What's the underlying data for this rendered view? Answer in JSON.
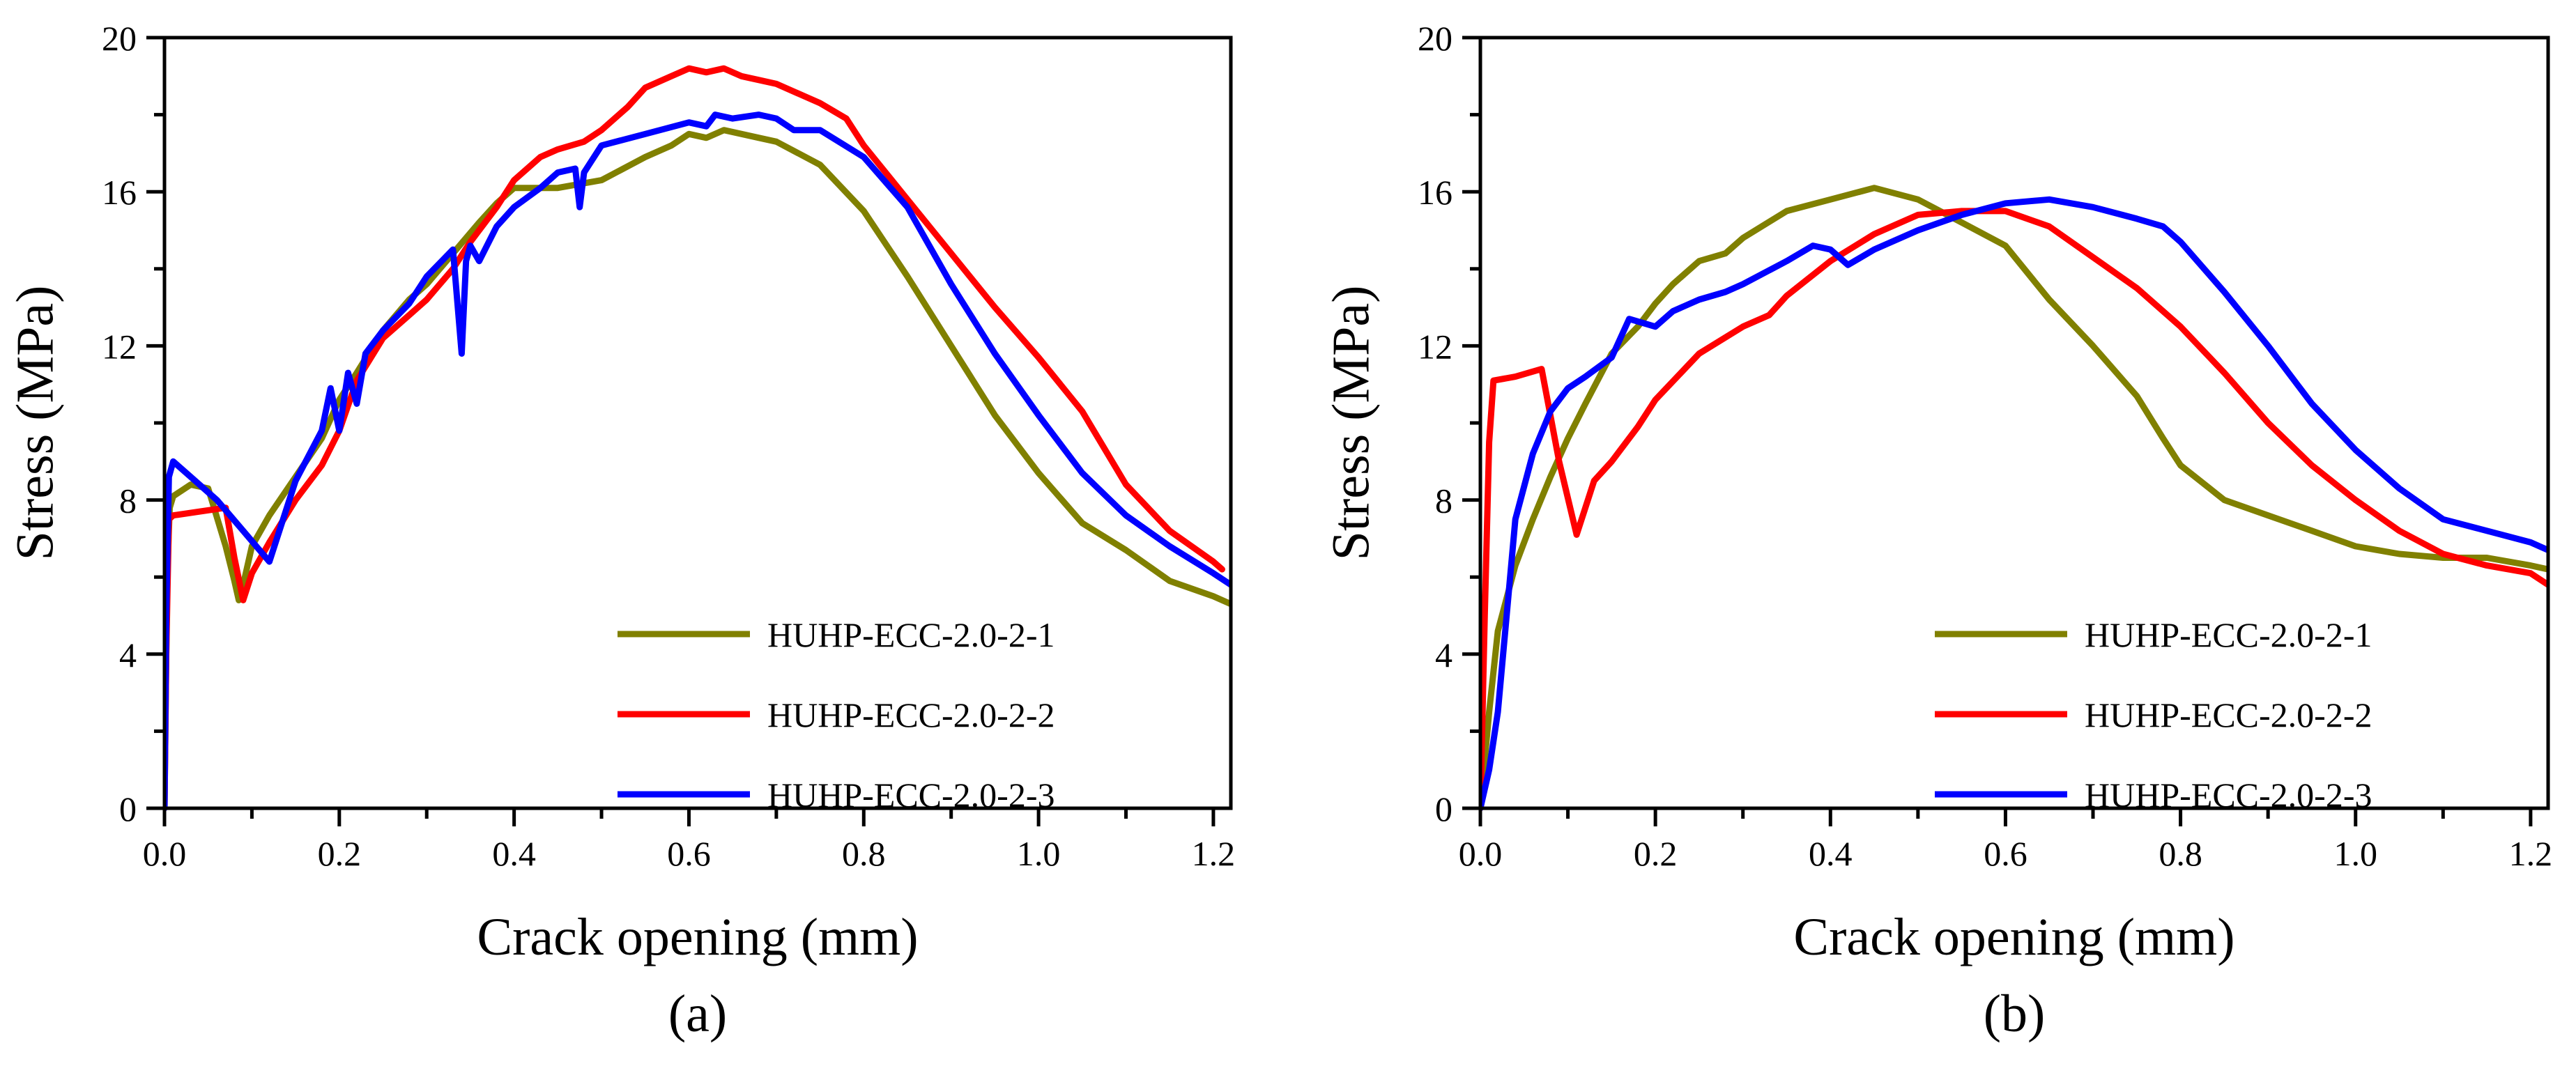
{
  "chart_data": [
    {
      "type": "line",
      "caption": "(a)",
      "xlabel": "Crack opening (mm)",
      "ylabel": "Stress (MPa)",
      "xlim": [
        0.0,
        1.22
      ],
      "ylim": [
        0,
        20
      ],
      "xticks": [
        0.0,
        0.2,
        0.4,
        0.6,
        0.8,
        1.0,
        1.2
      ],
      "yticks": [
        0,
        4,
        8,
        12,
        16,
        20
      ],
      "xtick_labels": [
        "0.0",
        "0.2",
        "0.4",
        "0.6",
        "0.8",
        "1.0",
        "1.2"
      ],
      "ytick_labels": [
        "0",
        "4",
        "8",
        "12",
        "16",
        "20"
      ],
      "grid": false,
      "legend_position": "bottom-right",
      "series": [
        {
          "name": "HUHP-ECC-2.0-2-1",
          "color": "#808000",
          "x": [
            0,
            0.003,
            0.006,
            0.01,
            0.03,
            0.05,
            0.07,
            0.08,
            0.085,
            0.09,
            0.1,
            0.12,
            0.15,
            0.18,
            0.2,
            0.22,
            0.25,
            0.28,
            0.3,
            0.33,
            0.36,
            0.38,
            0.4,
            0.45,
            0.5,
            0.55,
            0.58,
            0.6,
            0.62,
            0.64,
            0.68,
            0.7,
            0.75,
            0.8,
            0.85,
            0.9,
            0.95,
            1.0,
            1.05,
            1.1,
            1.15,
            1.2,
            1.22
          ],
          "y": [
            0,
            6.0,
            7.8,
            8.1,
            8.4,
            8.3,
            6.8,
            5.9,
            5.4,
            5.8,
            6.8,
            7.6,
            8.6,
            9.6,
            10.6,
            11.3,
            12.4,
            13.2,
            13.6,
            14.4,
            15.2,
            15.7,
            16.1,
            16.1,
            16.3,
            16.9,
            17.2,
            17.5,
            17.4,
            17.6,
            17.4,
            17.3,
            16.7,
            15.5,
            13.8,
            12.0,
            10.2,
            8.7,
            7.4,
            6.7,
            5.9,
            5.5,
            5.3
          ]
        },
        {
          "name": "HUHP-ECC-2.0-2-2",
          "color": "#ff0000",
          "x": [
            0,
            0.002,
            0.005,
            0.01,
            0.04,
            0.07,
            0.08,
            0.09,
            0.1,
            0.12,
            0.15,
            0.18,
            0.2,
            0.22,
            0.25,
            0.28,
            0.3,
            0.33,
            0.35,
            0.38,
            0.4,
            0.43,
            0.45,
            0.48,
            0.5,
            0.53,
            0.55,
            0.58,
            0.6,
            0.62,
            0.64,
            0.66,
            0.68,
            0.7,
            0.75,
            0.78,
            0.8,
            0.85,
            0.9,
            0.95,
            1.0,
            1.05,
            1.1,
            1.15,
            1.2,
            1.21
          ],
          "y": [
            0,
            4.0,
            7.5,
            7.6,
            7.7,
            7.8,
            6.5,
            5.4,
            6.1,
            6.9,
            8.0,
            8.9,
            9.8,
            11.1,
            12.2,
            12.8,
            13.2,
            14.0,
            14.7,
            15.6,
            16.3,
            16.9,
            17.1,
            17.3,
            17.6,
            18.2,
            18.7,
            19.0,
            19.2,
            19.1,
            19.2,
            19.0,
            18.9,
            18.8,
            18.3,
            17.9,
            17.2,
            15.8,
            14.4,
            13.0,
            11.7,
            10.3,
            8.4,
            7.2,
            6.4,
            6.2
          ]
        },
        {
          "name": "HUHP-ECC-2.0-2-3",
          "color": "#0000ff",
          "x": [
            0,
            0.002,
            0.005,
            0.01,
            0.03,
            0.06,
            0.09,
            0.12,
            0.15,
            0.18,
            0.19,
            0.2,
            0.21,
            0.22,
            0.23,
            0.25,
            0.28,
            0.3,
            0.33,
            0.34,
            0.345,
            0.35,
            0.36,
            0.38,
            0.4,
            0.43,
            0.45,
            0.47,
            0.475,
            0.48,
            0.5,
            0.55,
            0.6,
            0.62,
            0.63,
            0.65,
            0.68,
            0.7,
            0.72,
            0.75,
            0.8,
            0.85,
            0.9,
            0.95,
            1.0,
            1.05,
            1.1,
            1.15,
            1.2,
            1.22
          ],
          "y": [
            0,
            5.0,
            8.6,
            9.0,
            8.6,
            8.0,
            7.2,
            6.4,
            8.5,
            9.8,
            10.9,
            9.8,
            11.3,
            10.5,
            11.8,
            12.4,
            13.1,
            13.8,
            14.5,
            11.8,
            14.2,
            14.6,
            14.2,
            15.1,
            15.6,
            16.1,
            16.5,
            16.6,
            15.6,
            16.5,
            17.2,
            17.5,
            17.8,
            17.7,
            18.0,
            17.9,
            18.0,
            17.9,
            17.6,
            17.6,
            16.9,
            15.6,
            13.6,
            11.8,
            10.2,
            8.7,
            7.6,
            6.8,
            6.1,
            5.8
          ]
        }
      ]
    },
    {
      "type": "line",
      "caption": "(b)",
      "xlabel": "Crack opening (mm)",
      "ylabel": "Stress (MPa)",
      "xlim": [
        0.0,
        1.22
      ],
      "ylim": [
        0,
        20
      ],
      "xticks": [
        0.0,
        0.2,
        0.4,
        0.6,
        0.8,
        1.0,
        1.2
      ],
      "yticks": [
        0,
        4,
        8,
        12,
        16,
        20
      ],
      "xtick_labels": [
        "0.0",
        "0.2",
        "0.4",
        "0.6",
        "0.8",
        "1.0",
        "1.2"
      ],
      "ytick_labels": [
        "0",
        "4",
        "8",
        "12",
        "16",
        "20"
      ],
      "grid": false,
      "legend_position": "bottom-right",
      "series": [
        {
          "name": "HUHP-ECC-2.0-2-1",
          "color": "#808000",
          "x": [
            0,
            0.01,
            0.02,
            0.04,
            0.06,
            0.08,
            0.1,
            0.12,
            0.15,
            0.18,
            0.2,
            0.22,
            0.25,
            0.28,
            0.3,
            0.35,
            0.4,
            0.45,
            0.5,
            0.55,
            0.6,
            0.65,
            0.7,
            0.75,
            0.78,
            0.8,
            0.85,
            0.9,
            0.95,
            1.0,
            1.05,
            1.1,
            1.15,
            1.2,
            1.22
          ],
          "y": [
            0,
            2.5,
            4.6,
            6.3,
            7.5,
            8.6,
            9.6,
            10.5,
            11.8,
            12.5,
            13.1,
            13.6,
            14.2,
            14.4,
            14.8,
            15.5,
            15.8,
            16.1,
            15.8,
            15.2,
            14.6,
            13.2,
            12.0,
            10.7,
            9.6,
            8.9,
            8.0,
            7.6,
            7.2,
            6.8,
            6.6,
            6.5,
            6.5,
            6.3,
            6.2
          ]
        },
        {
          "name": "HUHP-ECC-2.0-2-2",
          "color": "#ff0000",
          "x": [
            0,
            0.005,
            0.01,
            0.015,
            0.04,
            0.07,
            0.09,
            0.11,
            0.13,
            0.15,
            0.18,
            0.2,
            0.25,
            0.3,
            0.33,
            0.35,
            0.4,
            0.45,
            0.5,
            0.55,
            0.6,
            0.65,
            0.7,
            0.75,
            0.8,
            0.85,
            0.9,
            0.95,
            1.0,
            1.05,
            1.1,
            1.15,
            1.2,
            1.22
          ],
          "y": [
            0,
            5.0,
            9.5,
            11.1,
            11.2,
            11.4,
            9.0,
            7.1,
            8.5,
            9.0,
            9.9,
            10.6,
            11.8,
            12.5,
            12.8,
            13.3,
            14.2,
            14.9,
            15.4,
            15.5,
            15.5,
            15.1,
            14.3,
            13.5,
            12.5,
            11.3,
            10.0,
            8.9,
            8.0,
            7.2,
            6.6,
            6.3,
            6.1,
            5.8
          ]
        },
        {
          "name": "HUHP-ECC-2.0-2-3",
          "color": "#0000ff",
          "x": [
            0,
            0.01,
            0.02,
            0.03,
            0.04,
            0.06,
            0.08,
            0.1,
            0.12,
            0.15,
            0.17,
            0.2,
            0.22,
            0.25,
            0.28,
            0.3,
            0.35,
            0.38,
            0.4,
            0.42,
            0.45,
            0.5,
            0.55,
            0.6,
            0.65,
            0.7,
            0.75,
            0.78,
            0.8,
            0.85,
            0.9,
            0.95,
            1.0,
            1.05,
            1.1,
            1.15,
            1.2,
            1.22
          ],
          "y": [
            0,
            1.0,
            2.5,
            5.0,
            7.5,
            9.2,
            10.3,
            10.9,
            11.2,
            11.7,
            12.7,
            12.5,
            12.9,
            13.2,
            13.4,
            13.6,
            14.2,
            14.6,
            14.5,
            14.1,
            14.5,
            15.0,
            15.4,
            15.7,
            15.8,
            15.6,
            15.3,
            15.1,
            14.7,
            13.4,
            12.0,
            10.5,
            9.3,
            8.3,
            7.5,
            7.2,
            6.9,
            6.7
          ]
        }
      ]
    }
  ]
}
